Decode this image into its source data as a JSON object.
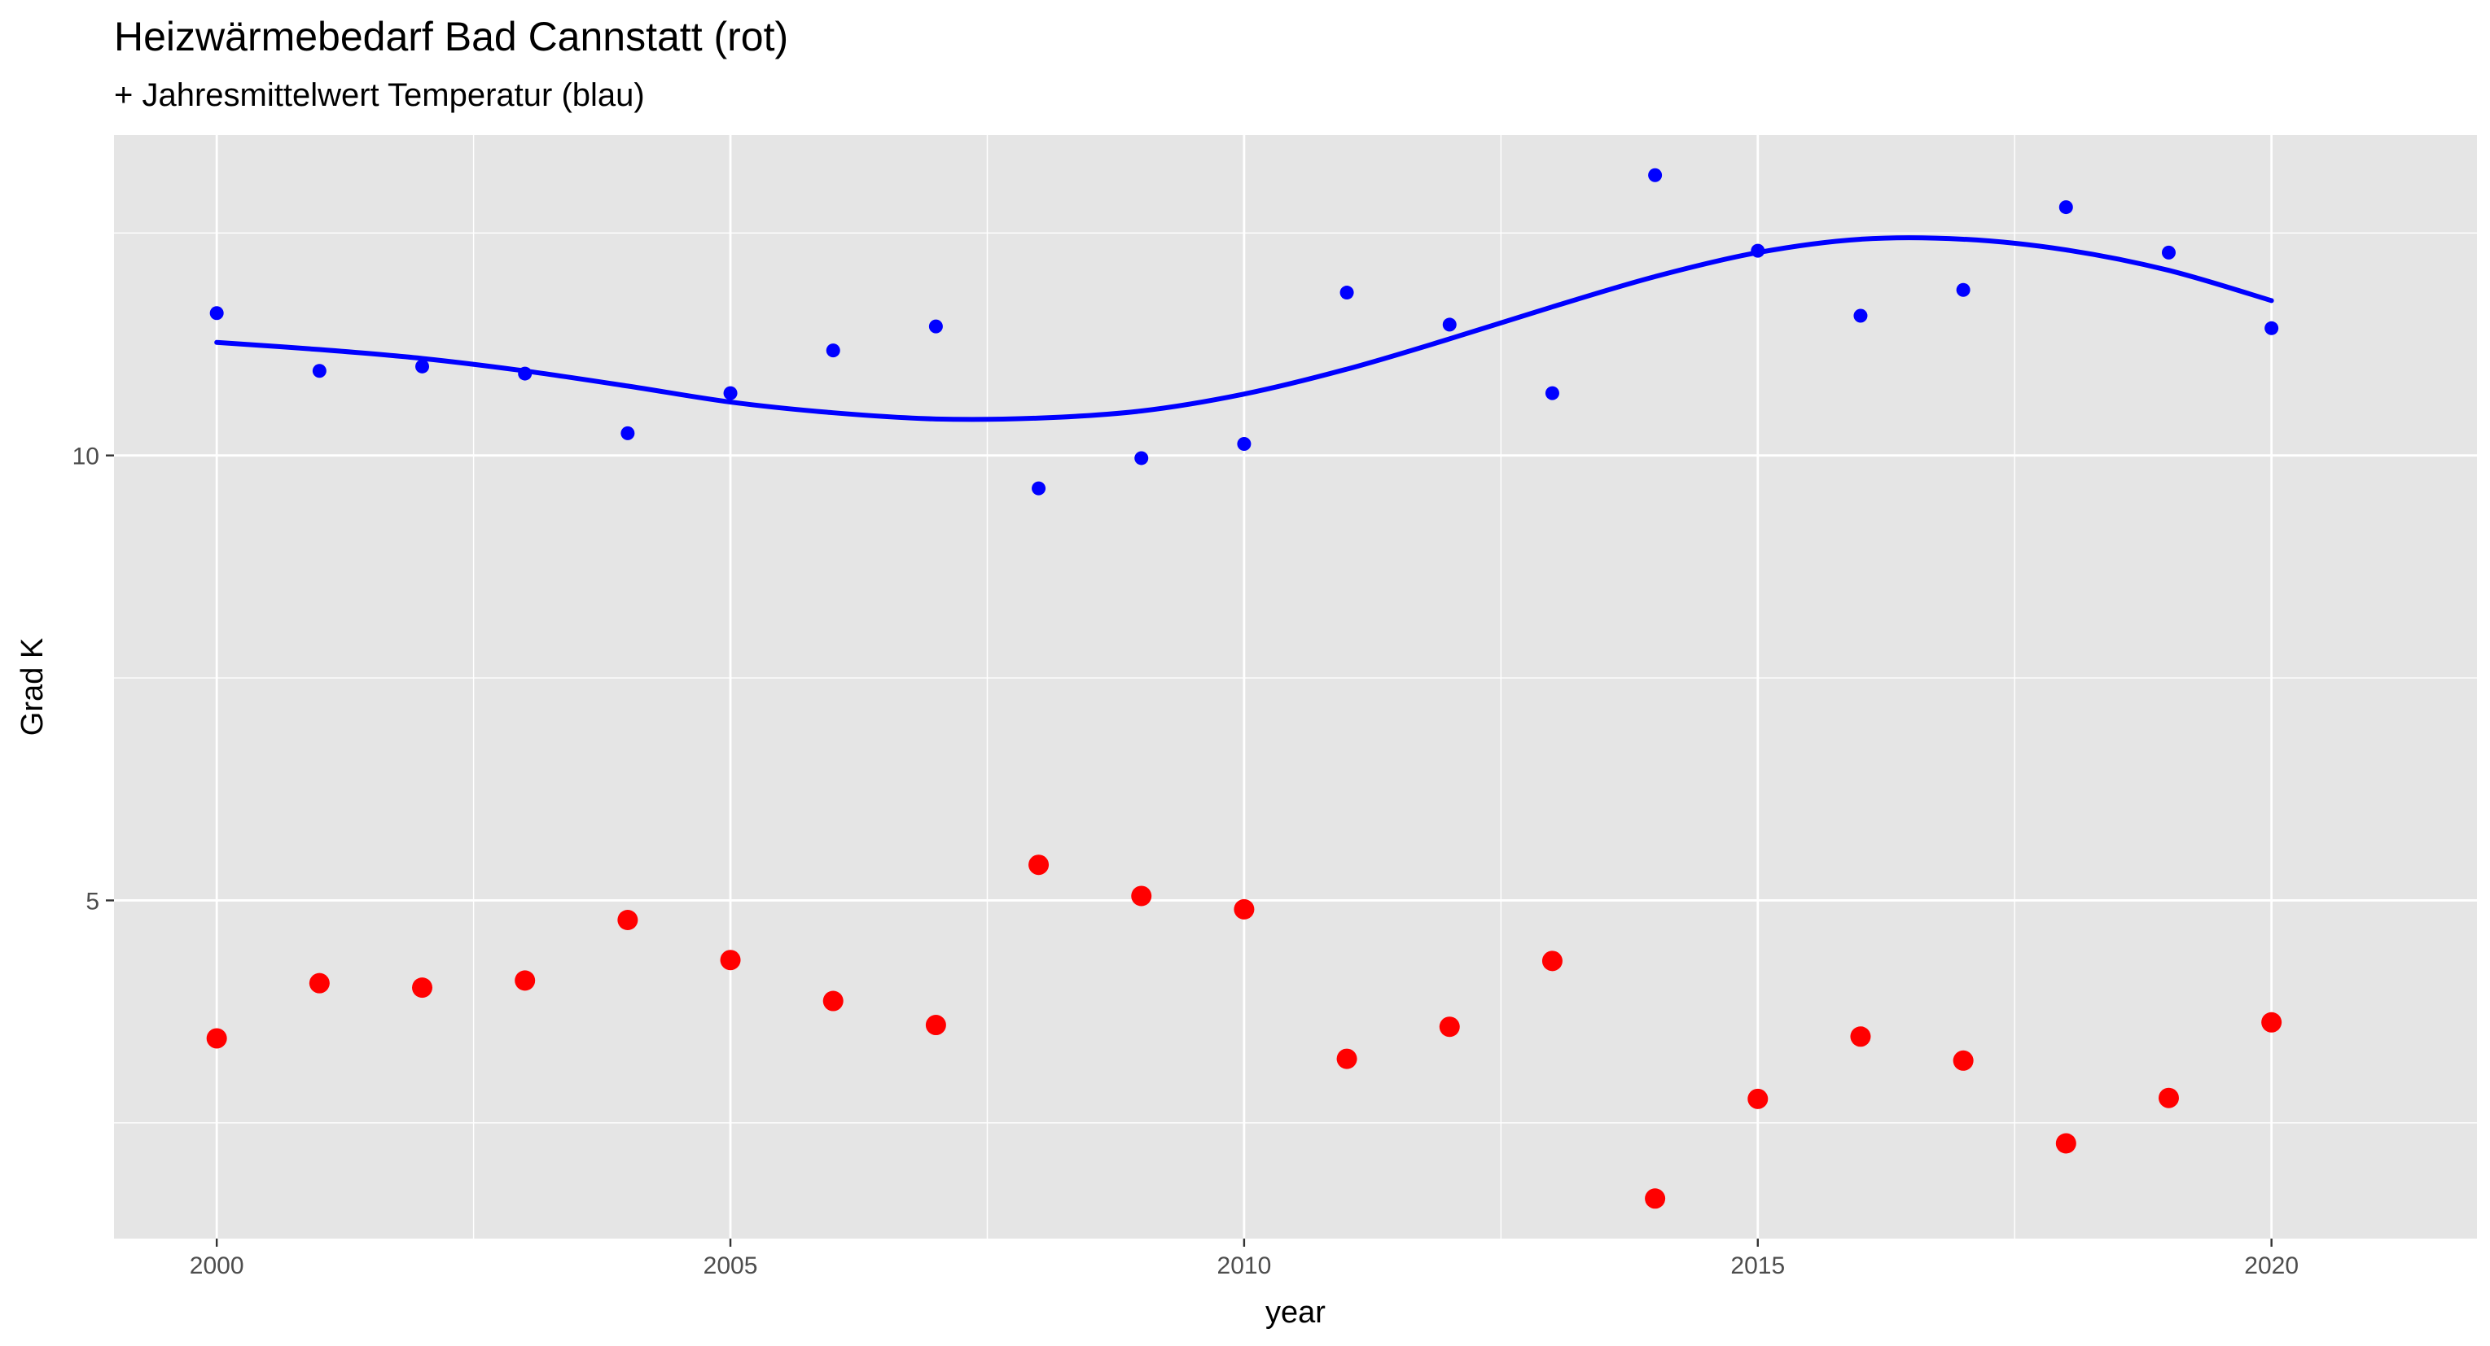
{
  "chart_data": {
    "type": "scatter",
    "title": "Heizwärmebedarf Bad Cannstatt (rot)",
    "subtitle": "+ Jahresmittelwert Temperatur (blau)",
    "xlabel": "year",
    "ylabel": "Grad K",
    "xlim": [
      1999,
      2022
    ],
    "ylim": [
      1.2,
      13.6
    ],
    "x_ticks": [
      2000,
      2005,
      2010,
      2015,
      2020
    ],
    "y_ticks": [
      5,
      10
    ],
    "grid": true,
    "series": [
      {
        "color": "#0000ff",
        "x": [
          2000,
          2001,
          2002,
          2003,
          2004,
          2005,
          2006,
          2007,
          2008,
          2009,
          2010,
          2011,
          2012,
          2013,
          2014,
          2015,
          2016,
          2017,
          2018,
          2019,
          2020
        ],
        "y": [
          11.6,
          10.95,
          11.0,
          10.92,
          10.25,
          10.7,
          11.18,
          11.45,
          9.63,
          9.97,
          10.13,
          11.83,
          11.47,
          10.7,
          13.15,
          12.3,
          11.57,
          11.86,
          12.79,
          12.28,
          11.43
        ]
      },
      {
        "color": "#ff0000",
        "x": [
          2000,
          2001,
          2002,
          2003,
          2004,
          2005,
          2006,
          2007,
          2008,
          2009,
          2010,
          2011,
          2012,
          2013,
          2014,
          2015,
          2016,
          2017,
          2018,
          2019,
          2020
        ],
        "y": [
          3.45,
          4.07,
          4.02,
          4.1,
          4.78,
          4.33,
          3.87,
          3.6,
          5.4,
          5.05,
          4.9,
          3.22,
          3.58,
          4.32,
          1.65,
          2.77,
          3.47,
          3.2,
          2.27,
          2.78,
          3.63
        ]
      }
    ],
    "smooth_line": {
      "color": "#0000ff",
      "x": [
        2000,
        2001,
        2002,
        2003,
        2004,
        2005,
        2006,
        2007,
        2008,
        2009,
        2010,
        2011,
        2012,
        2013,
        2014,
        2015,
        2016,
        2017,
        2018,
        2019,
        2020
      ],
      "y": [
        11.27,
        11.19,
        11.09,
        10.95,
        10.78,
        10.6,
        10.48,
        10.41,
        10.42,
        10.5,
        10.69,
        10.97,
        11.31,
        11.67,
        12.01,
        12.28,
        12.43,
        12.43,
        12.31,
        12.08,
        11.74
      ]
    }
  }
}
